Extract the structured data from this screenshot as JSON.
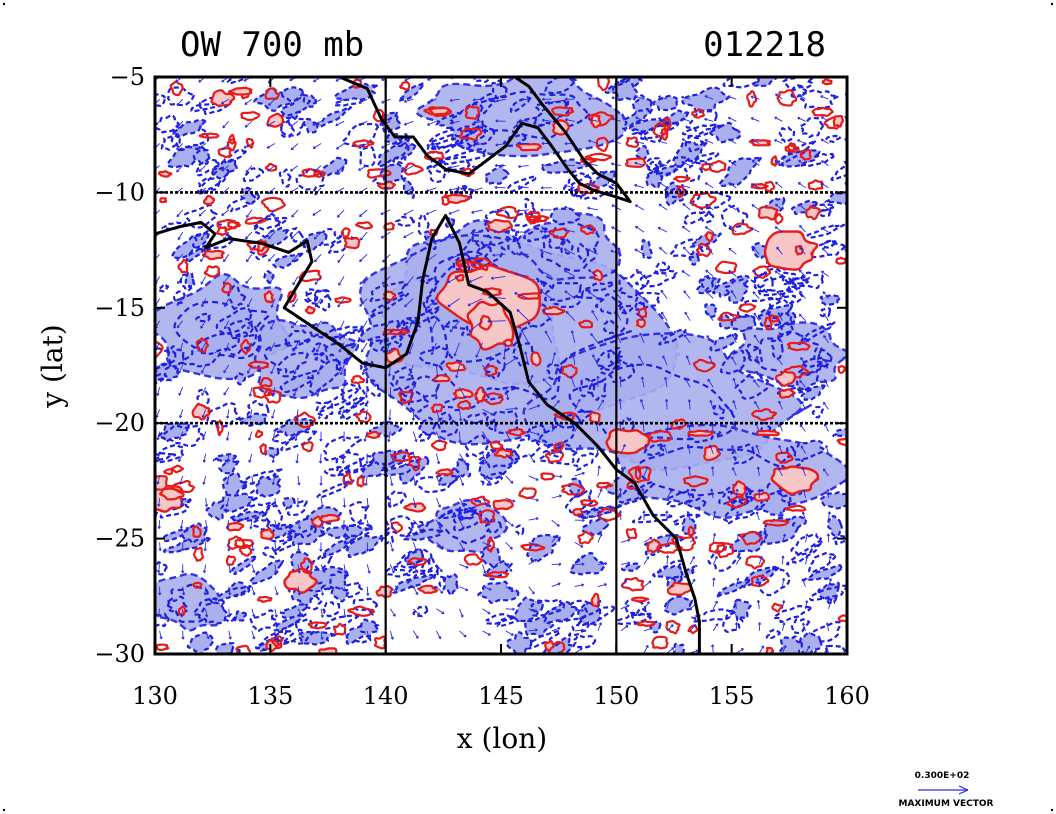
{
  "chart_data": {
    "type": "contour-vector-map",
    "title": "OW 700 mb",
    "date_label": "012218",
    "xlabel": "x (lon)",
    "ylabel": "y (lat)",
    "xlim": [
      130,
      160
    ],
    "ylim": [
      -30,
      -5
    ],
    "x_ticks": [
      130,
      135,
      140,
      145,
      150,
      155,
      160
    ],
    "y_ticks": [
      -5,
      -10,
      -15,
      -20,
      -25,
      -30
    ],
    "grid_lon": [
      140,
      150
    ],
    "grid_lat": [
      -10,
      -20
    ],
    "vector_legend": {
      "value_label": "0.300E+02",
      "caption": "MAXIMUM VECTOR"
    },
    "colors": {
      "negative_contour": "#1f1fe0",
      "negative_fill": "#aab0ee",
      "positive_contour": "#e81a1a",
      "positive_fill": "#f7c6c6",
      "vector": "#2a2ae6",
      "coast": "#000000"
    },
    "coastline": [
      [
        [
          138.0,
          -5.0
        ],
        [
          139.2,
          -5.5
        ],
        [
          139.8,
          -6.8
        ],
        [
          140.4,
          -7.6
        ],
        [
          141.2,
          -7.6
        ],
        [
          141.8,
          -8.4
        ],
        [
          142.6,
          -9.0
        ],
        [
          143.6,
          -9.2
        ],
        [
          144.4,
          -8.6
        ],
        [
          145.2,
          -8.0
        ],
        [
          145.9,
          -7.0
        ],
        [
          146.6,
          -7.2
        ],
        [
          147.2,
          -8.0
        ],
        [
          147.9,
          -9.0
        ],
        [
          148.4,
          -9.6
        ],
        [
          149.0,
          -9.9
        ],
        [
          150.0,
          -10.2
        ],
        [
          150.6,
          -10.4
        ],
        [
          150.0,
          -9.6
        ],
        [
          149.2,
          -9.2
        ],
        [
          148.6,
          -8.6
        ],
        [
          147.8,
          -7.4
        ],
        [
          146.8,
          -6.2
        ],
        [
          146.2,
          -5.4
        ],
        [
          145.6,
          -5.0
        ]
      ],
      [
        [
          130.0,
          -11.8
        ],
        [
          131.0,
          -11.5
        ],
        [
          132.0,
          -11.3
        ],
        [
          132.6,
          -11.8
        ],
        [
          132.2,
          -12.4
        ],
        [
          133.2,
          -12.0
        ],
        [
          134.6,
          -12.2
        ],
        [
          135.8,
          -12.6
        ],
        [
          136.6,
          -12.1
        ],
        [
          136.8,
          -13.0
        ],
        [
          136.2,
          -14.0
        ],
        [
          135.6,
          -15.0
        ],
        [
          136.8,
          -15.8
        ],
        [
          138.0,
          -16.6
        ],
        [
          139.0,
          -17.4
        ],
        [
          140.0,
          -17.6
        ],
        [
          140.9,
          -17.0
        ],
        [
          141.4,
          -15.6
        ],
        [
          141.6,
          -13.8
        ],
        [
          142.0,
          -12.0
        ],
        [
          142.6,
          -11.0
        ],
        [
          143.2,
          -12.2
        ],
        [
          143.6,
          -14.0
        ],
        [
          144.4,
          -14.3
        ],
        [
          145.4,
          -15.2
        ],
        [
          145.8,
          -16.6
        ],
        [
          146.2,
          -18.2
        ],
        [
          147.0,
          -19.2
        ],
        [
          148.2,
          -20.0
        ],
        [
          149.2,
          -21.0
        ],
        [
          150.0,
          -22.0
        ],
        [
          150.8,
          -22.6
        ],
        [
          151.6,
          -24.0
        ],
        [
          152.6,
          -25.0
        ],
        [
          153.0,
          -26.4
        ],
        [
          153.4,
          -27.6
        ],
        [
          153.6,
          -28.6
        ],
        [
          153.6,
          -30.0
        ]
      ]
    ],
    "negative_regions": [
      {
        "lon": 144.0,
        "lat": -14.8,
        "rx": 4.2,
        "ry": 3.4
      },
      {
        "lon": 145.5,
        "lat": -16.0,
        "rx": 6.5,
        "ry": 4.6
      },
      {
        "lon": 151.5,
        "lat": -19.2,
        "rx": 6.0,
        "ry": 2.6
      },
      {
        "lon": 154.5,
        "lat": -22.2,
        "rx": 5.0,
        "ry": 1.8
      },
      {
        "lon": 133.0,
        "lat": -15.8,
        "rx": 3.0,
        "ry": 2.0
      },
      {
        "lon": 136.5,
        "lat": -17.2,
        "rx": 2.4,
        "ry": 1.6
      },
      {
        "lon": 146.0,
        "lat": -6.6,
        "rx": 4.0,
        "ry": 1.6
      },
      {
        "lon": 148.0,
        "lat": -12.4,
        "rx": 2.0,
        "ry": 1.6
      },
      {
        "lon": 157.5,
        "lat": -17.0,
        "rx": 2.5,
        "ry": 1.4
      },
      {
        "lon": 131.5,
        "lat": -27.8,
        "rx": 1.6,
        "ry": 1.2
      },
      {
        "lon": 143.5,
        "lat": -24.5,
        "rx": 1.8,
        "ry": 1.0
      }
    ],
    "positive_regions": [
      {
        "lon": 144.4,
        "lat": -14.6,
        "rx": 2.0,
        "ry": 1.5
      },
      {
        "lon": 144.6,
        "lat": -15.8,
        "rx": 1.0,
        "ry": 1.0
      },
      {
        "lon": 157.5,
        "lat": -12.6,
        "rx": 1.2,
        "ry": 0.8
      },
      {
        "lon": 157.6,
        "lat": -22.4,
        "rx": 1.0,
        "ry": 0.6
      },
      {
        "lon": 130.5,
        "lat": -23.2,
        "rx": 0.7,
        "ry": 0.6
      },
      {
        "lon": 136.3,
        "lat": -26.8,
        "rx": 0.6,
        "ry": 0.5
      },
      {
        "lon": 150.5,
        "lat": -20.8,
        "rx": 0.9,
        "ry": 0.5
      }
    ]
  }
}
